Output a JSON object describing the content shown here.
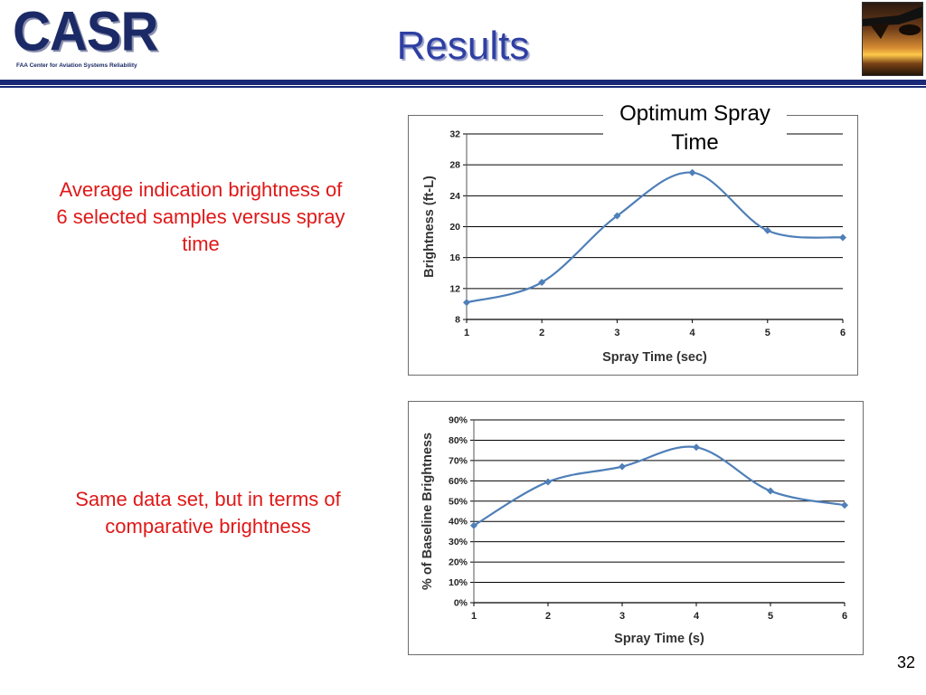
{
  "slide": {
    "title": "Results",
    "page_number": "32",
    "logo_text": "CASR",
    "logo_subtitle": "FAA Center for Aviation Systems Reliability",
    "caption_top": "Average indication brightness of 6 selected samples versus spray time",
    "caption_bottom": "Same data set, but in terms of comparative brightness",
    "annotation": "Optimum Spray Time",
    "accent_color": "#1a2a78",
    "caption_color": "#e01818",
    "series_color": "#4f7fb8"
  },
  "chart_data": [
    {
      "type": "line",
      "xlabel": "Spray Time (sec)",
      "ylabel": "Brightness (ft-L)",
      "x": [
        1,
        2,
        3,
        4,
        5,
        6
      ],
      "categories": [
        "1",
        "2",
        "3",
        "4",
        "5",
        "6"
      ],
      "values": [
        10.2,
        12.8,
        21.4,
        27.0,
        19.5,
        18.6
      ],
      "ylim": [
        8,
        32
      ],
      "yticks": [
        8,
        12,
        16,
        20,
        24,
        28,
        32
      ],
      "ytick_labels": [
        "8",
        "12",
        "16",
        "20",
        "24",
        "28",
        "32"
      ],
      "grid": true,
      "smooth": true,
      "marker": "diamond"
    },
    {
      "type": "line",
      "xlabel": "Spray Time (s)",
      "ylabel": "% of Baseline Brightness",
      "x": [
        1,
        2,
        3,
        4,
        5,
        6
      ],
      "categories": [
        "1",
        "2",
        "3",
        "4",
        "5",
        "6"
      ],
      "values": [
        0.38,
        0.595,
        0.67,
        0.765,
        0.55,
        0.48
      ],
      "ylim": [
        0,
        0.9
      ],
      "yticks": [
        0,
        0.1,
        0.2,
        0.3,
        0.4,
        0.5,
        0.6,
        0.7,
        0.8,
        0.9
      ],
      "ytick_labels": [
        "0%",
        "10%",
        "20%",
        "30%",
        "40%",
        "50%",
        "60%",
        "70%",
        "80%",
        "90%"
      ],
      "grid": true,
      "smooth": true,
      "marker": "diamond"
    }
  ]
}
